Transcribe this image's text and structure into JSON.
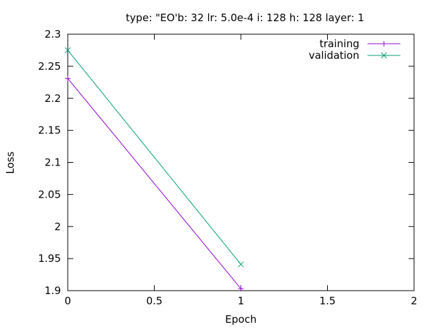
{
  "chart_data": {
    "type": "line",
    "title": "type: \"EO'b: 32 lr: 5.0e-4 i: 128 h: 128 layer: 1",
    "xlabel": "Epoch",
    "ylabel": "Loss",
    "xlim": [
      0,
      2
    ],
    "ylim": [
      1.9,
      2.3
    ],
    "xticks": [
      0,
      0.5,
      1,
      1.5,
      2
    ],
    "xtick_labels": [
      "0",
      "0.5",
      "1",
      "1.5",
      "2"
    ],
    "yticks": [
      1.9,
      1.95,
      2,
      2.05,
      2.1,
      2.15,
      2.2,
      2.25,
      2.3
    ],
    "ytick_labels": [
      "1.9",
      "1.95",
      "2",
      "2.05",
      "2.1",
      "2.15",
      "2.2",
      "2.25",
      "2.3"
    ],
    "grid": false,
    "legend_position": "top-right",
    "series": [
      {
        "name": "training",
        "x": [
          0,
          1
        ],
        "y": [
          2.231,
          1.903
        ],
        "color": "#9400d3",
        "marker": "plus"
      },
      {
        "name": "validation",
        "x": [
          0,
          1
        ],
        "y": [
          2.275,
          1.941
        ],
        "color": "#009e73",
        "marker": "cross"
      }
    ]
  }
}
